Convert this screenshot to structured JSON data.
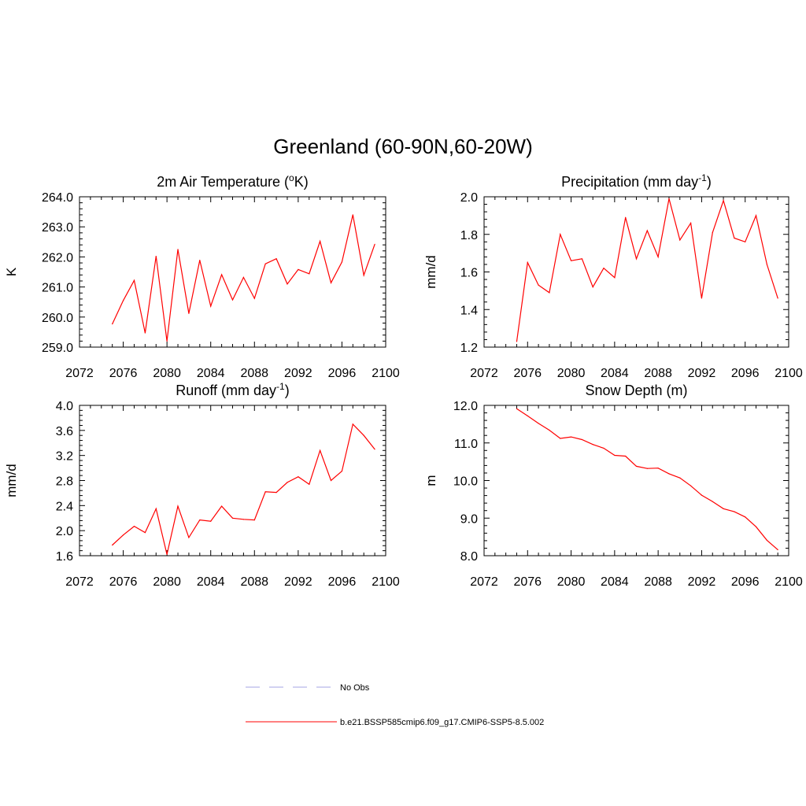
{
  "figure": {
    "title": "Greenland (60-90N,60-20W)"
  },
  "legend": {
    "entries": [
      {
        "label": "No Obs",
        "color": "#a5a5e6",
        "style": "dashed"
      },
      {
        "label": "b.e21.BSSP585cmip6.f09_g17.CMIP6-SSP5-8.5.002",
        "color": "#ff0000",
        "style": "solid"
      }
    ]
  },
  "chart_data": [
    {
      "type": "line",
      "title": "2m Air Temperature (",
      "title_sup": "o",
      "title_after": "K)",
      "ylabel": "K",
      "xlim": [
        2072,
        2100
      ],
      "x_ticks": [
        "2072",
        "2076",
        "2080",
        "2084",
        "2088",
        "2092",
        "2096",
        "2100"
      ],
      "ylim": [
        259.0,
        264.0
      ],
      "y_ticks": [
        "259.0",
        "260.0",
        "261.0",
        "262.0",
        "263.0",
        "264.0"
      ],
      "series": [
        {
          "color": "#ff0000",
          "x": [
            2075,
            2076,
            2077,
            2078,
            2079,
            2080,
            2081,
            2082,
            2083,
            2084,
            2085,
            2086,
            2087,
            2088,
            2089,
            2090,
            2091,
            2092,
            2093,
            2094,
            2095,
            2096,
            2097,
            2098,
            2099
          ],
          "values": [
            259.77,
            260.55,
            261.22,
            259.47,
            262.02,
            259.2,
            262.25,
            260.12,
            261.89,
            260.36,
            261.41,
            260.57,
            261.32,
            260.62,
            261.77,
            261.94,
            261.1,
            261.58,
            261.44,
            262.52,
            261.14,
            261.83,
            263.4,
            261.39,
            262.42
          ]
        }
      ]
    },
    {
      "type": "line",
      "title": "Precipitation (mm day",
      "title_sup": "-1",
      "title_after": ")",
      "ylabel": "mm/d",
      "xlim": [
        2072,
        2100
      ],
      "x_ticks": [
        "2072",
        "2076",
        "2080",
        "2084",
        "2088",
        "2092",
        "2096",
        "2100"
      ],
      "ylim": [
        1.2,
        2.0
      ],
      "y_ticks": [
        "1.2",
        "1.4",
        "1.6",
        "1.8",
        "2.0"
      ],
      "series": [
        {
          "color": "#ff0000",
          "x": [
            2075,
            2076,
            2077,
            2078,
            2079,
            2080,
            2081,
            2082,
            2083,
            2084,
            2085,
            2086,
            2087,
            2088,
            2089,
            2090,
            2091,
            2092,
            2093,
            2094,
            2095,
            2096,
            2097,
            2098,
            2099
          ],
          "values": [
            1.23,
            1.65,
            1.53,
            1.49,
            1.8,
            1.66,
            1.67,
            1.52,
            1.62,
            1.57,
            1.89,
            1.67,
            1.82,
            1.68,
            1.99,
            1.77,
            1.86,
            1.46,
            1.81,
            1.98,
            1.78,
            1.76,
            1.9,
            1.64,
            1.46
          ]
        }
      ]
    },
    {
      "type": "line",
      "title": "Runoff (mm day",
      "title_sup": "-1",
      "title_after": ")",
      "ylabel": "mm/d",
      "xlim": [
        2072,
        2100
      ],
      "x_ticks": [
        "2072",
        "2076",
        "2080",
        "2084",
        "2088",
        "2092",
        "2096",
        "2100"
      ],
      "ylim": [
        1.6,
        4.0
      ],
      "y_ticks": [
        "1.6",
        "2.0",
        "2.4",
        "2.8",
        "3.2",
        "3.6",
        "4.0"
      ],
      "series": [
        {
          "color": "#ff0000",
          "x": [
            2075,
            2076,
            2077,
            2078,
            2079,
            2080,
            2081,
            2082,
            2083,
            2084,
            2085,
            2086,
            2087,
            2088,
            2089,
            2090,
            2091,
            2092,
            2093,
            2094,
            2095,
            2096,
            2097,
            2098,
            2099
          ],
          "values": [
            1.77,
            1.93,
            2.07,
            1.97,
            2.35,
            1.62,
            2.39,
            1.89,
            2.17,
            2.15,
            2.39,
            2.2,
            2.18,
            2.17,
            2.62,
            2.61,
            2.77,
            2.86,
            2.74,
            3.28,
            2.8,
            2.95,
            3.7,
            3.52,
            3.3
          ]
        }
      ]
    },
    {
      "type": "line",
      "title": "Snow Depth (m)",
      "title_sup": "",
      "title_after": "",
      "ylabel": "m",
      "xlim": [
        2072,
        2100
      ],
      "x_ticks": [
        "2072",
        "2076",
        "2080",
        "2084",
        "2088",
        "2092",
        "2096",
        "2100"
      ],
      "ylim": [
        8.0,
        12.0
      ],
      "y_ticks": [
        "8.0",
        "9.0",
        "10.0",
        "11.0",
        "12.0"
      ],
      "series": [
        {
          "color": "#ff0000",
          "x": [
            2075,
            2076,
            2077,
            2078,
            2079,
            2080,
            2081,
            2082,
            2083,
            2084,
            2085,
            2086,
            2087,
            2088,
            2089,
            2090,
            2091,
            2092,
            2093,
            2094,
            2095,
            2096,
            2097,
            2098,
            2099
          ],
          "values": [
            11.91,
            11.72,
            11.52,
            11.34,
            11.12,
            11.16,
            11.09,
            10.96,
            10.86,
            10.67,
            10.65,
            10.38,
            10.32,
            10.33,
            10.18,
            10.07,
            9.86,
            9.61,
            9.44,
            9.25,
            9.17,
            9.03,
            8.77,
            8.41,
            8.16
          ]
        }
      ]
    }
  ]
}
